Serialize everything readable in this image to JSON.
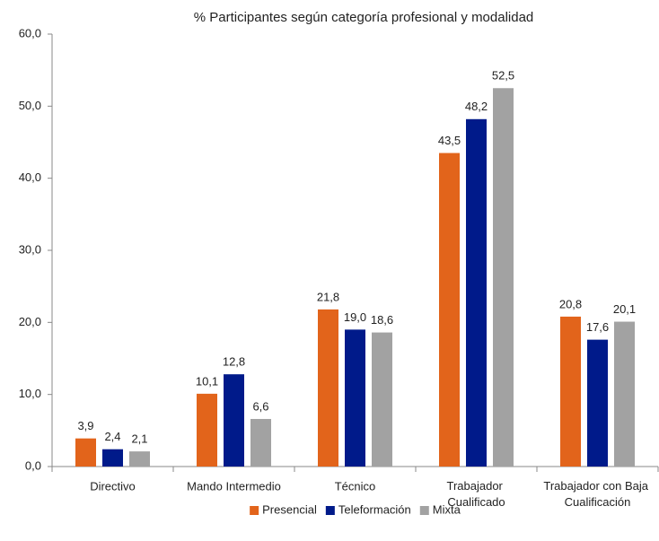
{
  "chart_data": {
    "type": "bar",
    "title": "% Participantes según categoría profesional y modalidad",
    "categories": [
      "Directivo",
      "Mando Intermedio",
      "Técnico",
      "Trabajador Cualificado",
      "Trabajador con Baja Cualificación"
    ],
    "series": [
      {
        "name": "Presencial",
        "color": "#e2641b",
        "values": [
          3.9,
          10.1,
          21.8,
          43.5,
          20.8
        ],
        "value_labels": [
          "3,9",
          "10,1",
          "21,8",
          "43,5",
          "20,8"
        ]
      },
      {
        "name": "Teleformación",
        "color": "#001a8a",
        "values": [
          2.4,
          12.8,
          19.0,
          48.2,
          17.6
        ],
        "value_labels": [
          "2,4",
          "12,8",
          "19,0",
          "48,2",
          "17,6"
        ]
      },
      {
        "name": "Mixta",
        "color": "#a2a2a2",
        "values": [
          2.1,
          6.6,
          18.6,
          52.5,
          20.1
        ],
        "value_labels": [
          "2,1",
          "6,6",
          "18,6",
          "52,5",
          "20,1"
        ]
      }
    ],
    "ylim": [
      0,
      60
    ],
    "yticks": [
      {
        "value": 0,
        "label": "0,0"
      },
      {
        "value": 10,
        "label": "10,0"
      },
      {
        "value": 20,
        "label": "20,0"
      },
      {
        "value": 30,
        "label": "30,0"
      },
      {
        "value": 40,
        "label": "40,0"
      },
      {
        "value": 50,
        "label": "50,0"
      },
      {
        "value": 60,
        "label": "60,0"
      }
    ],
    "grid": false,
    "legend": "bottom"
  }
}
